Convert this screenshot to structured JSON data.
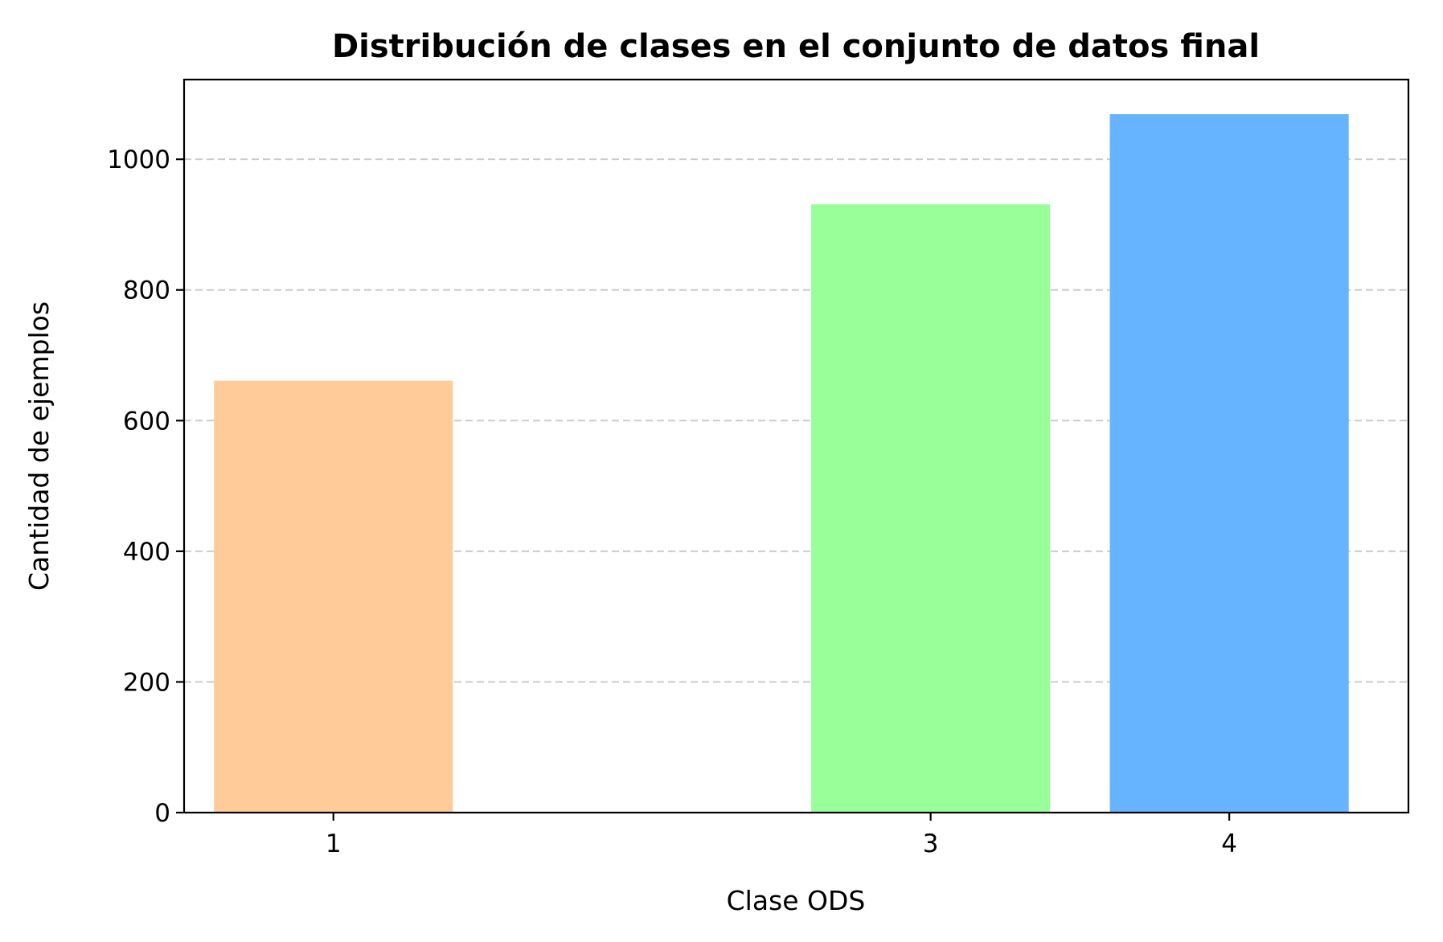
{
  "chart_data": {
    "type": "bar",
    "title": "Distribución de clases en el conjunto de datos final",
    "xlabel": "Clase ODS",
    "ylabel": "Cantidad de ejemplos",
    "x": [
      1,
      3,
      4
    ],
    "categories": [
      "1",
      "3",
      "4"
    ],
    "values": [
      661,
      931,
      1069
    ],
    "colors": [
      "#ffcc99",
      "#99ff99",
      "#66b3ff"
    ],
    "xlim": [
      0.5,
      4.6
    ],
    "ylim": [
      0,
      1122
    ],
    "yticks": [
      0,
      200,
      400,
      600,
      800,
      1000
    ],
    "xticks": [
      1,
      3,
      4
    ],
    "grid": "y-dashed",
    "legend": "none"
  }
}
